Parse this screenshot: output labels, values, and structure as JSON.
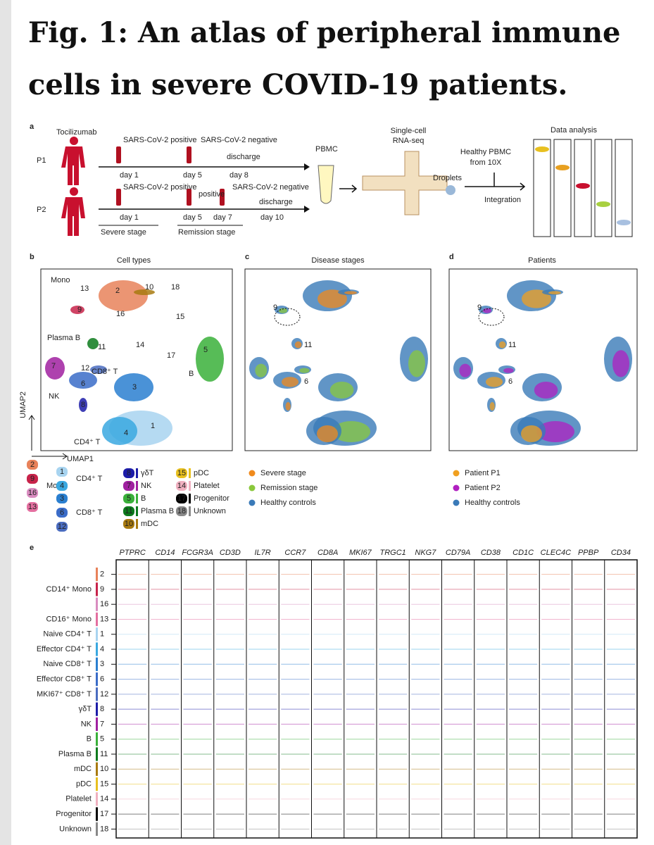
{
  "title": "Fig. 1: An atlas of peripheral immune cells in severe COVID-19 patients.",
  "panel_a": {
    "label": "a",
    "drug": "Tocilizumab",
    "p1": "P1",
    "p2": "P2",
    "p1_events": [
      "SARS-CoV-2 positive",
      "SARS-CoV-2 negative",
      "discharge"
    ],
    "p1_days": [
      "day 1",
      "day 5",
      "day 8"
    ],
    "p2_events": [
      "SARS-CoV-2 positive",
      "positive",
      "SARS-CoV-2 negative",
      "discharge"
    ],
    "p2_days": [
      "day 1",
      "day 5",
      "day 7",
      "day 10"
    ],
    "stages": [
      "Severe stage",
      "Remission stage"
    ],
    "pbmc": "PBMC",
    "seq": [
      "Single-cell",
      "RNA-seq"
    ],
    "droplets": "Droplets",
    "healthy": [
      "Healthy PBMC",
      "from 10X"
    ],
    "integration": "Integration",
    "analysis": "Data analysis"
  },
  "panel_b": {
    "label": "b",
    "title": "Cell types",
    "x_axis": "UMAP1",
    "y_axis": "UMAP2",
    "labels": [
      "Mono",
      "13",
      "2",
      "10",
      "18",
      "9",
      "16",
      "15",
      "Plasma B",
      "11",
      "14",
      "17",
      "5",
      "B",
      "7",
      "12",
      "CD8⁺ T",
      "6",
      "3",
      "NK",
      "8",
      "4",
      "1",
      "CD4⁺ T"
    ]
  },
  "panel_c": {
    "label": "c",
    "title": "Disease stages",
    "labels": [
      "9",
      "11",
      "6"
    ]
  },
  "panel_d": {
    "label": "d",
    "title": "Patients",
    "labels": [
      "9",
      "11",
      "6"
    ]
  },
  "legend_b": {
    "groups": [
      {
        "name": "Mono",
        "items": [
          "2",
          "9",
          "16",
          "13"
        ]
      },
      {
        "name": "CD4⁺ T",
        "items": [
          "1",
          "4"
        ]
      },
      {
        "name": "CD8⁺ T",
        "items": [
          "3",
          "6",
          "12"
        ]
      }
    ],
    "singles": [
      {
        "num": "8",
        "name": "γδT"
      },
      {
        "num": "7",
        "name": "NK"
      },
      {
        "num": "5",
        "name": "B"
      },
      {
        "num": "11",
        "name": "Plasma B"
      },
      {
        "num": "10",
        "name": "mDC"
      },
      {
        "num": "15",
        "name": "pDC"
      },
      {
        "num": "14",
        "name": "Platelet"
      },
      {
        "num": "17",
        "name": "Progenitor"
      },
      {
        "num": "18",
        "name": "Unknown"
      }
    ]
  },
  "legend_c": [
    {
      "name": "Severe stage",
      "color": "#f08a1c"
    },
    {
      "name": "Remission stage",
      "color": "#8ac83c"
    },
    {
      "name": "Healthy controls",
      "color": "#3a7ab8"
    }
  ],
  "legend_d": [
    {
      "name": "Patient P1",
      "color": "#f0a020"
    },
    {
      "name": "Patient P2",
      "color": "#b020c0"
    },
    {
      "name": "Healthy controls",
      "color": "#3a7ab8"
    }
  ],
  "cluster_colors": {
    "1": "#a8d4f0",
    "2": "#e8825a",
    "3": "#2a7fd0",
    "4": "#3aa8e0",
    "5": "#3ab03a",
    "6": "#3a6cc8",
    "7": "#a020a0",
    "8": "#1c1ca8",
    "9": "#c8234a",
    "10": "#a87a10",
    "11": "#0c7a1c",
    "12": "#4a6cc0",
    "13": "#e46fa0",
    "14": "#f0b0c0",
    "15": "#e8c020",
    "16": "#d98cc0",
    "17": "#000000",
    "18": "#888888"
  },
  "panel_e": {
    "label": "e",
    "genes": [
      "PTPRC",
      "CD14",
      "FCGR3A",
      "CD3D",
      "IL7R",
      "CCR7",
      "CD8A",
      "MKI67",
      "TRGC1",
      "NKG7",
      "CD79A",
      "CD38",
      "CD1C",
      "CLEC4C",
      "PPBP",
      "CD34"
    ],
    "rows": [
      {
        "num": "2"
      },
      {
        "label": "CD14⁺ Mono",
        "num": "9"
      },
      {
        "num": "16"
      },
      {
        "label": "CD16⁺ Mono",
        "num": "13"
      },
      {
        "label": "Naive CD4⁺ T",
        "num": "1"
      },
      {
        "label": "Effector CD4⁺ T",
        "num": "4"
      },
      {
        "label": "Naive CD8⁺ T",
        "num": "3"
      },
      {
        "label": "Effector CD8⁺ T",
        "num": "6"
      },
      {
        "label": "MKI67⁺ CD8⁺ T",
        "num": "12"
      },
      {
        "label": "γδT",
        "num": "8"
      },
      {
        "label": "NK",
        "num": "7"
      },
      {
        "label": "B",
        "num": "5"
      },
      {
        "label": "Plasma B",
        "num": "11"
      },
      {
        "label": "mDC",
        "num": "10"
      },
      {
        "label": "pDC",
        "num": "15"
      },
      {
        "label": "Platelet",
        "num": "14"
      },
      {
        "label": "Progenitor",
        "num": "17"
      },
      {
        "label": "Unknown",
        "num": "18"
      }
    ]
  }
}
